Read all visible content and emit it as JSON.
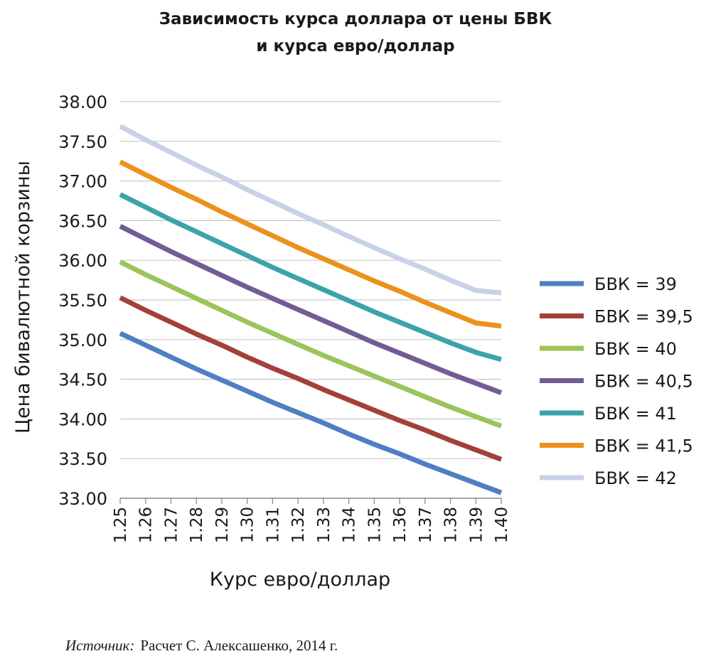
{
  "title_line1": "Зависимость курса доллара от цены БВК",
  "title_line2": "и курса евро/доллар",
  "source_label": "Источник:",
  "source_text": "Расчет С. Алексашенко, 2014 г.",
  "chart_data": {
    "type": "line",
    "xlabel": "Курс евро/доллар",
    "ylabel": "Цена бивалютной корзины",
    "x": [
      1.25,
      1.26,
      1.27,
      1.28,
      1.29,
      1.3,
      1.31,
      1.32,
      1.33,
      1.34,
      1.35,
      1.36,
      1.37,
      1.38,
      1.39,
      1.4
    ],
    "x_tick_labels": [
      "1.25",
      "1.26",
      "1.27",
      "1.28",
      "1.29",
      "1.30",
      "1.31",
      "1.32",
      "1.33",
      "1.34",
      "1.35",
      "1.36",
      "1.37",
      "1.38",
      "1.39",
      "1.40"
    ],
    "y_ticks": [
      33.0,
      33.5,
      34.0,
      34.5,
      35.0,
      35.5,
      36.0,
      36.5,
      37.0,
      37.5,
      38.0
    ],
    "y_tick_labels": [
      "33.00",
      "33.50",
      "34.00",
      "34.50",
      "35.00",
      "35.50",
      "36.00",
      "36.50",
      "37.00",
      "37.50",
      "38.00"
    ],
    "ylim": [
      33.0,
      38.0
    ],
    "xlim": [
      1.25,
      1.4
    ],
    "grid": "horizontal",
    "legend_position": "right",
    "series": [
      {
        "name": "БВК = 39",
        "color": "#4f7fc3",
        "values": [
          35.08,
          34.93,
          34.78,
          34.63,
          34.49,
          34.35,
          34.21,
          34.08,
          33.95,
          33.81,
          33.68,
          33.56,
          33.43,
          33.31,
          33.19,
          33.07
        ]
      },
      {
        "name": "БВК = 39,5",
        "color": "#a3403a",
        "values": [
          35.53,
          35.37,
          35.22,
          35.07,
          34.93,
          34.78,
          34.64,
          34.51,
          34.37,
          34.24,
          34.11,
          33.98,
          33.86,
          33.73,
          33.61,
          33.49
        ]
      },
      {
        "name": "БВК = 40",
        "color": "#9bc45a",
        "values": [
          35.98,
          35.82,
          35.67,
          35.52,
          35.37,
          35.22,
          35.08,
          34.94,
          34.8,
          34.67,
          34.54,
          34.41,
          34.28,
          34.15,
          34.03,
          33.91
        ]
      },
      {
        "name": "БВК = 40,5",
        "color": "#725c96",
        "values": [
          36.43,
          36.27,
          36.11,
          35.96,
          35.81,
          35.66,
          35.52,
          35.38,
          35.24,
          35.1,
          34.96,
          34.83,
          34.7,
          34.57,
          34.45,
          34.33
        ]
      },
      {
        "name": "БВК = 41",
        "color": "#3ca3ab",
        "values": [
          36.83,
          36.67,
          36.51,
          36.36,
          36.21,
          36.06,
          35.91,
          35.77,
          35.63,
          35.49,
          35.35,
          35.22,
          35.09,
          34.96,
          34.84,
          34.75
        ]
      },
      {
        "name": "БВК = 41,5",
        "color": "#eb921b",
        "values": [
          37.24,
          37.08,
          36.92,
          36.77,
          36.61,
          36.46,
          36.31,
          36.16,
          36.02,
          35.88,
          35.74,
          35.61,
          35.47,
          35.34,
          35.21,
          35.17
        ]
      },
      {
        "name": "БВК = 42",
        "color": "#c8d2e6",
        "values": [
          37.69,
          37.52,
          37.36,
          37.2,
          37.05,
          36.89,
          36.74,
          36.59,
          36.45,
          36.3,
          36.16,
          36.02,
          35.89,
          35.75,
          35.62,
          35.59
        ]
      }
    ]
  }
}
